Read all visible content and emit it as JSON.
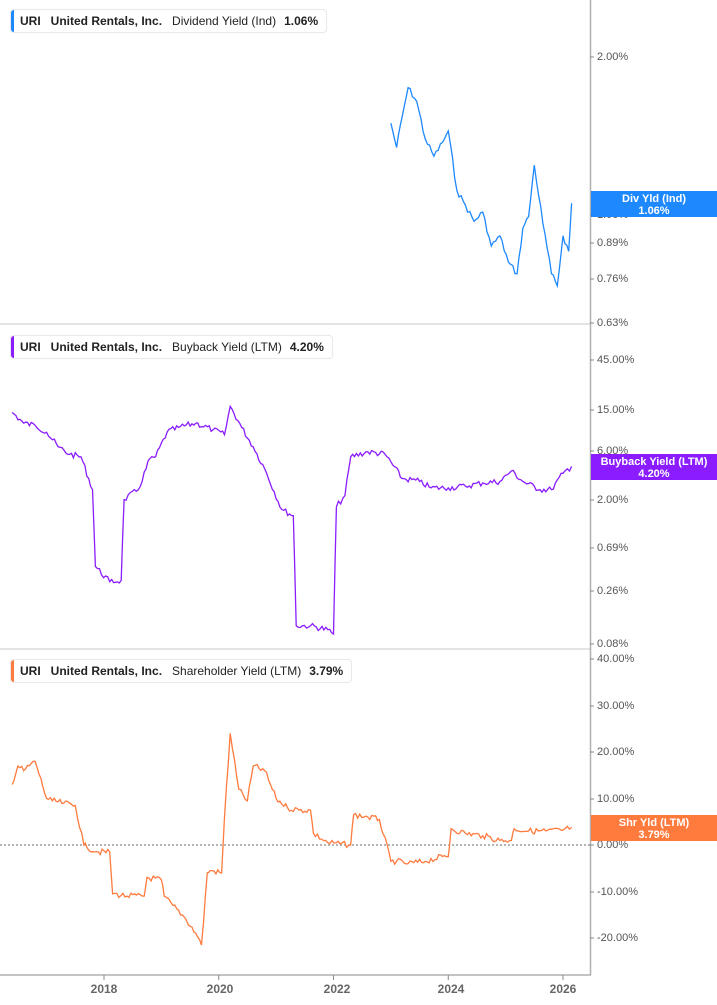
{
  "chart_data": [
    {
      "type": "line",
      "title": "URI United Rentals, Inc. Dividend Yield (Ind)",
      "legend": {
        "ticker": "URI",
        "company": "United Rentals, Inc.",
        "metric": "Dividend Yield (Ind)",
        "value": "1.06%"
      },
      "color": "#1e88ff",
      "y_scale": "log",
      "yticks": [
        "2.00%",
        "1.00%",
        "0.89%",
        "0.76%",
        "0.63%"
      ],
      "ylim": [
        0.63,
        2.4
      ],
      "last_value_flag": {
        "label": "Div Yld (Ind)",
        "value": "1.06%"
      },
      "x": [
        2023.0,
        2023.1,
        2023.2,
        2023.3,
        2023.45,
        2023.6,
        2023.75,
        2023.9,
        2024.0,
        2024.15,
        2024.3,
        2024.45,
        2024.6,
        2024.75,
        2024.9,
        2025.05,
        2025.2,
        2025.3,
        2025.4,
        2025.5,
        2025.65,
        2025.8,
        2025.9,
        2026.0,
        2026.1,
        2026.15
      ],
      "values": [
        1.5,
        1.35,
        1.55,
        1.75,
        1.65,
        1.4,
        1.3,
        1.38,
        1.45,
        1.12,
        1.05,
        0.98,
        1.02,
        0.88,
        0.92,
        0.82,
        0.78,
        0.95,
        1.0,
        1.25,
        0.97,
        0.78,
        0.74,
        0.92,
        0.86,
        1.06
      ]
    },
    {
      "type": "line",
      "title": "URI United Rentals, Inc. Buyback Yield (LTM)",
      "legend": {
        "ticker": "URI",
        "company": "United Rentals, Inc.",
        "metric": "Buyback Yield (LTM)",
        "value": "4.20%"
      },
      "color": "#8a1cff",
      "y_scale": "log",
      "yticks": [
        "45.00%",
        "15.00%",
        "6.00%",
        "2.00%",
        "0.69%",
        "0.26%",
        "0.08%"
      ],
      "ylim": [
        0.08,
        45
      ],
      "last_value_flag": {
        "label": "Buyback Yield (LTM)",
        "value": "4.20%"
      },
      "x": [
        2016.4,
        2016.6,
        2016.8,
        2017.0,
        2017.2,
        2017.4,
        2017.6,
        2017.8,
        2017.85,
        2018.1,
        2018.3,
        2018.35,
        2018.6,
        2018.8,
        2018.9,
        2019.1,
        2019.3,
        2019.6,
        2019.9,
        2020.1,
        2020.2,
        2020.4,
        2020.6,
        2020.8,
        2021.1,
        2021.3,
        2021.35,
        2021.6,
        2021.9,
        2022.0,
        2022.05,
        2022.2,
        2022.3,
        2022.6,
        2022.9,
        2023.2,
        2023.5,
        2023.7,
        2024.0,
        2024.3,
        2024.6,
        2024.9,
        2025.1,
        2025.3,
        2025.6,
        2025.8,
        2026.0,
        2026.15
      ],
      "values": [
        14,
        11,
        10.5,
        9,
        6.5,
        5.5,
        5.2,
        2.5,
        0.45,
        0.32,
        0.33,
        2.0,
        2.5,
        5.0,
        5.2,
        9,
        10,
        11,
        9.5,
        8.5,
        16,
        10,
        6.5,
        4.0,
        1.6,
        1.4,
        0.12,
        0.12,
        0.11,
        0.1,
        1.7,
        2.2,
        5.2,
        5.8,
        5.5,
        3.2,
        3.0,
        2.6,
        2.6,
        2.7,
        2.9,
        3.0,
        3.8,
        3.0,
        2.5,
        2.5,
        3.6,
        4.2
      ]
    },
    {
      "type": "line",
      "title": "URI United Rentals, Inc. Shareholder Yield (LTM)",
      "legend": {
        "ticker": "URI",
        "company": "United Rentals, Inc.",
        "metric": "Shareholder Yield (LTM)",
        "value": "3.79%"
      },
      "color": "#ff7a3d",
      "y_scale": "linear",
      "yticks": [
        "40.00%",
        "30.00%",
        "20.00%",
        "10.00%",
        "0.00%",
        "-10.00%",
        "-20.00%"
      ],
      "ylim": [
        -22,
        42
      ],
      "zero_line": "dotted",
      "last_value_flag": {
        "label": "Shr Yld (LTM)",
        "value": "3.79%"
      },
      "x": [
        2016.4,
        2016.5,
        2016.6,
        2016.8,
        2017.0,
        2017.1,
        2017.3,
        2017.5,
        2017.65,
        2017.7,
        2017.9,
        2018.1,
        2018.15,
        2018.4,
        2018.7,
        2018.75,
        2019.0,
        2019.05,
        2019.2,
        2019.4,
        2019.6,
        2019.7,
        2019.8,
        2019.85,
        2020.05,
        2020.1,
        2020.2,
        2020.35,
        2020.5,
        2020.6,
        2020.8,
        2021.0,
        2021.2,
        2021.4,
        2021.6,
        2021.65,
        2021.9,
        2022.3,
        2022.35,
        2022.6,
        2022.8,
        2023.0,
        2023.1,
        2023.3,
        2023.6,
        2023.9,
        2024.0,
        2024.05,
        2024.3,
        2024.6,
        2024.9,
        2025.1,
        2025.15,
        2025.4,
        2025.7,
        2026.0,
        2026.15
      ],
      "values": [
        13,
        17,
        16,
        18,
        10,
        9.5,
        9,
        8.5,
        0,
        -0.5,
        -1.5,
        -1.5,
        -10.5,
        -11,
        -11,
        -7,
        -7.5,
        -11,
        -13,
        -15.5,
        -19,
        -21.5,
        -6,
        -5.5,
        -6,
        6,
        24,
        12,
        9.5,
        17,
        16,
        10,
        8,
        7.5,
        7.5,
        2.5,
        0.5,
        0,
        6.5,
        6,
        5.5,
        -3.5,
        -3.5,
        -4,
        -3.5,
        -2.5,
        -2.5,
        3.5,
        2.5,
        2,
        1,
        1,
        3.5,
        3,
        3,
        3.2,
        3.8
      ]
    }
  ],
  "x_axis": {
    "ticks": [
      "2018",
      "2020",
      "2022",
      "2024",
      "2026"
    ],
    "tick_years": [
      2018,
      2020,
      2022,
      2024,
      2026
    ],
    "range": [
      2016.35,
      2026.55
    ]
  }
}
